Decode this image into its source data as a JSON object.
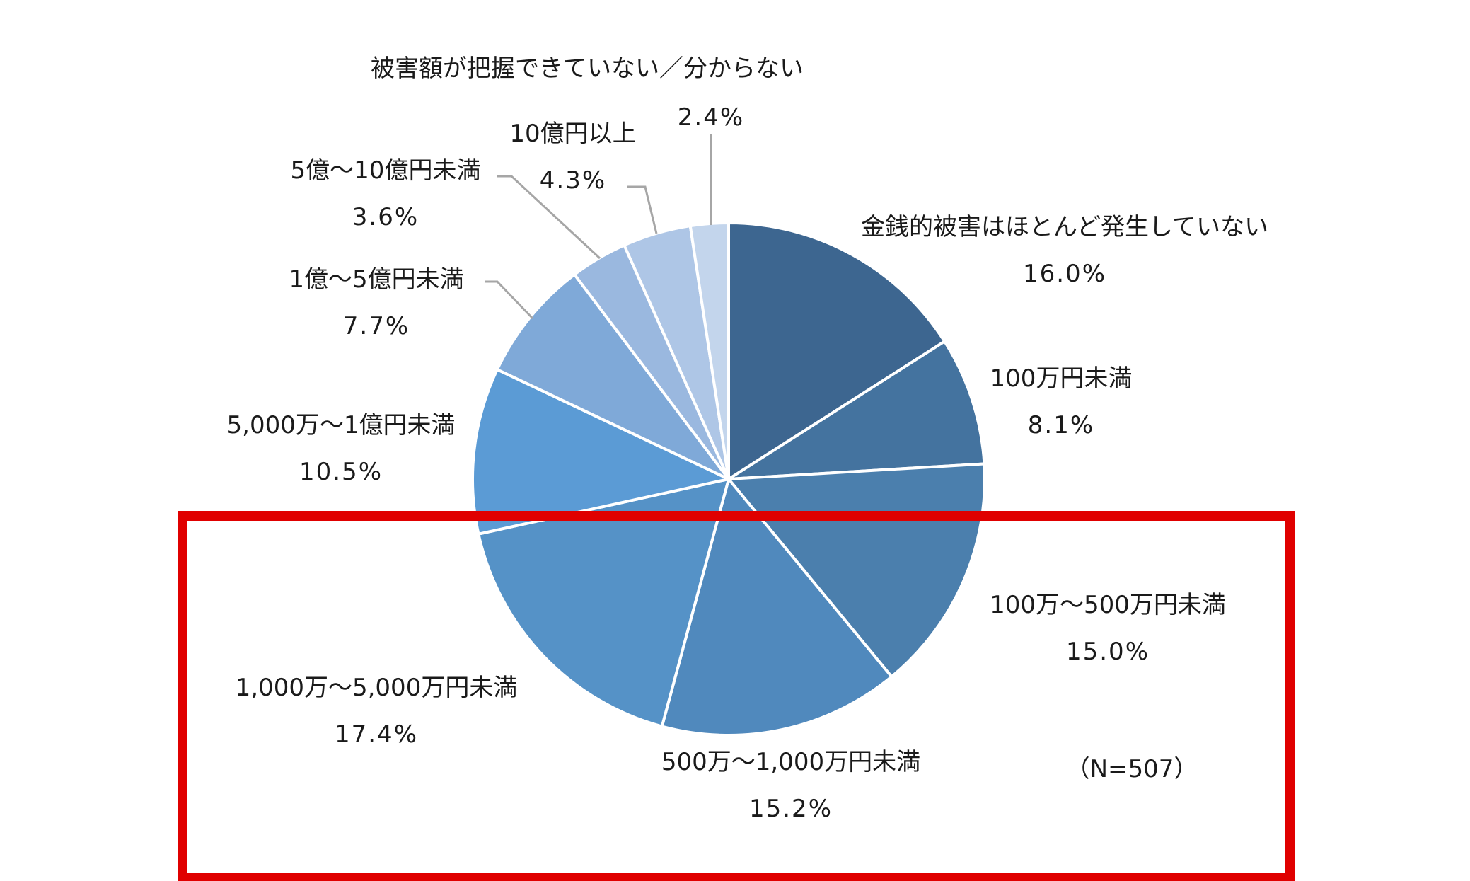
{
  "chart_data": {
    "type": "pie",
    "title": "",
    "start_angle": "12 o'clock, clockwise",
    "sample_note": "（N=507）",
    "slices": [
      {
        "label": "金銭的被害はほとんど発生していない",
        "value": 16.0,
        "value_label": "16.0%",
        "color": "#3d6690"
      },
      {
        "label": "100万円未満",
        "value": 8.1,
        "value_label": "8.1%",
        "color": "#44739f"
      },
      {
        "label": "100万～500万円未満",
        "value": 15.0,
        "value_label": "15.0%",
        "color": "#4b7fad"
      },
      {
        "label": "500万～1,000万円未満",
        "value": 15.2,
        "value_label": "15.2%",
        "color": "#5089bd"
      },
      {
        "label": "1,000万～5,000万円未満",
        "value": 17.4,
        "value_label": "17.4%",
        "color": "#5592c7"
      },
      {
        "label": "5,000万～1億円未満",
        "value": 10.5,
        "value_label": "10.5%",
        "color": "#5b9bd5"
      },
      {
        "label": "1億～5億円未満",
        "value": 7.7,
        "value_label": "7.7%",
        "color": "#7fa9d8"
      },
      {
        "label": "5億～10億円未満",
        "value": 3.6,
        "value_label": "3.6%",
        "color": "#9ab8df"
      },
      {
        "label": "10億円以上",
        "value": 4.3,
        "value_label": "4.3%",
        "color": "#aec6e6"
      },
      {
        "label": "被害額が把握できていない／分からない",
        "value": 2.4,
        "value_label": "2.4%",
        "color": "#c3d5ec"
      }
    ],
    "highlight_box_color": "#e00000",
    "leader_line_color": "#a6a6a6"
  }
}
